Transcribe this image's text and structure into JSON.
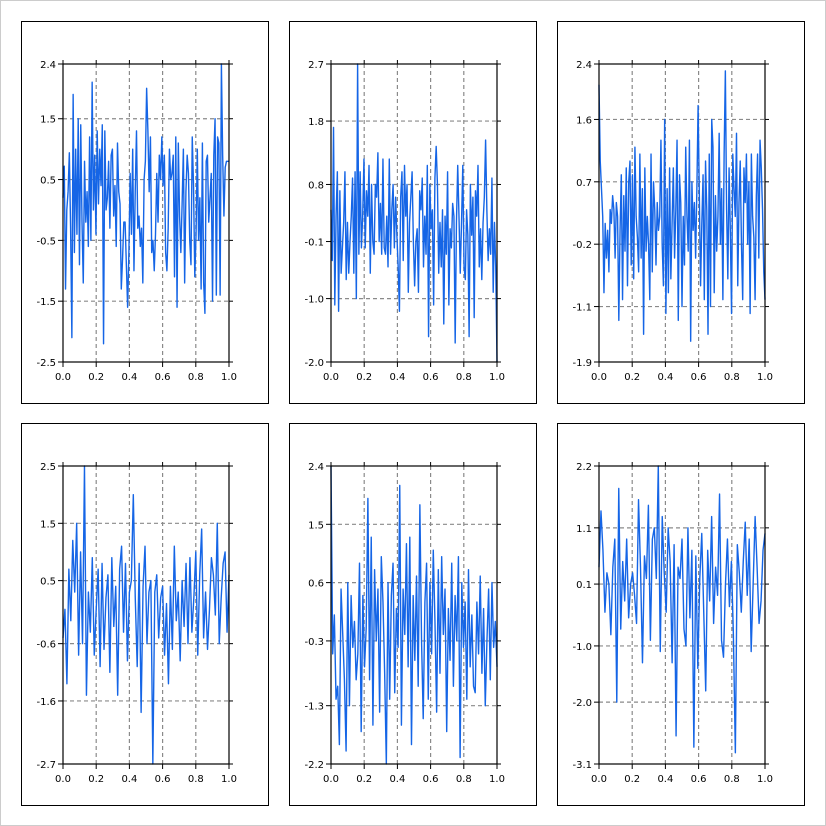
{
  "colors": {
    "line": "#1565e6",
    "grid": "#8a8a8a",
    "frame": "#000000",
    "background": "#ffffff"
  },
  "chart_data": [
    {
      "type": "line",
      "xlim": [
        0,
        1
      ],
      "ylim": [
        -2.5,
        2.4
      ],
      "xticks": [
        "0.0",
        "0.2",
        "0.4",
        "0.6",
        "0.8",
        "1.0"
      ],
      "yticks": [
        "-2.5",
        "-1.5",
        "-0.5",
        "0.5",
        "1.5",
        "2.4"
      ],
      "ytick_values": [
        -2.5,
        -1.5,
        -0.5,
        0.5,
        1.5,
        2.4
      ],
      "grid": true,
      "series": [
        {
          "values": [
            0.2,
            0.72,
            -1.3,
            0.0,
            0.3,
            0.94,
            -0.3,
            -2.1,
            1.9,
            -0.7,
            1.0,
            -0.4,
            1.5,
            -0.9,
            1.4,
            -0.2,
            -1.2,
            0.8,
            -0.2,
            0.3,
            -0.6,
            1.2,
            -0.5,
            2.1,
            0.0,
            0.9,
            -0.4,
            1.3,
            0.1,
            1.0,
            0.4,
            1.4,
            -2.2,
            1.3,
            0.0,
            0.2,
            0.8,
            -0.3,
            0.9,
            1.0,
            -0.1,
            0.4,
            -0.6,
            1.1,
            0.3,
            0.1,
            -1.3,
            -0.8,
            -0.2,
            -0.2,
            -0.9,
            -1.6,
            -0.7,
            0.6,
            -0.4,
            1.0,
            -1.0,
            0.3,
            1.3,
            -0.3,
            -0.1,
            -0.6,
            -0.3,
            -1.2,
            0.5,
            0.8,
            2.0,
            1.3,
            0.3,
            1.2,
            -0.7,
            -0.5,
            -1.0,
            -0.4,
            0.6,
            -0.2,
            0.9,
            0.5,
            1.2,
            0.4,
            0.9,
            -0.7,
            -1.0,
            -0.3,
            1.0,
            0.5,
            0.6,
            0.9,
            -1.1,
            1.2,
            -1.6,
            1.1,
            -0.1,
            -0.7,
            0.1,
            1.0,
            -1.2,
            0.3,
            0.9,
            0.6,
            -0.5,
            -0.9,
            1.2,
            0.4,
            -1.1,
            -0.4,
            1.0,
            -0.5,
            0.2,
            -1.3,
            1.1,
            -1.2,
            -1.7,
            0.8,
            0.9,
            -0.2,
            0.2,
            0.6,
            -1.5,
            0.9,
            1.5,
            -1.4,
            1.2,
            1.1,
            -1.4,
            2.4,
            0.9,
            -0.1,
            0.7,
            0.8,
            0.8,
            0.8
          ]
        }
      ]
    },
    {
      "type": "line",
      "xlim": [
        0,
        1
      ],
      "ylim": [
        -2.0,
        2.7
      ],
      "xticks": [
        "0.0",
        "0.2",
        "0.4",
        "0.6",
        "0.8",
        "1.0"
      ],
      "yticks": [
        "-2.0",
        "-1.0",
        "-0.1",
        "0.8",
        "1.8",
        "2.7"
      ],
      "ytick_values": [
        -2.0,
        -1.0,
        -0.1,
        0.8,
        1.8,
        2.7
      ],
      "grid": true,
      "series": [
        {
          "values": [
            0.4,
            -0.4,
            1.7,
            -1.1,
            0.3,
            1.0,
            -1.2,
            0.7,
            -0.6,
            -0.2,
            0.2,
            1.0,
            -0.7,
            0.2,
            -0.6,
            -0.1,
            0.3,
            0.9,
            -0.6,
            1.0,
            -1.0,
            2.7,
            -0.3,
            1.0,
            -0.2,
            0.3,
            1.2,
            -0.2,
            0.7,
            0.3,
            1.1,
            -0.6,
            0.8,
            -0.1,
            -0.3,
            0.8,
            0.6,
            1.3,
            -0.1,
            0.5,
            -0.3,
            1.2,
            -0.2,
            -0.3,
            0.3,
            -0.5,
            1.2,
            -0.3,
            0.4,
            0.8,
            -0.2,
            0.6,
            0.0,
            -0.5,
            -1.2,
            0.6,
            1.0,
            -0.4,
            1.1,
            0.3,
            0.8,
            -0.9,
            0.2,
            0.6,
            1.0,
            -0.1,
            -0.8,
            -0.1,
            0.1,
            -0.9,
            0.7,
            0.4,
            0.9,
            -0.5,
            0.3,
            -0.3,
            1.1,
            -1.6,
            0.8,
            0.1,
            0.4,
            -1.1,
            0.9,
            1.4,
            0.8,
            -0.6,
            0.2,
            -0.5,
            0.4,
            -1.4,
            0.3,
            -0.3,
            1.0,
            -1.1,
            0.1,
            -0.2,
            0.5,
            0.3,
            -1.7,
            0.2,
            1.1,
            0.3,
            -0.6,
            0.2,
            1.1,
            -0.5,
            -0.7,
            0.4,
            0.0,
            -1.6,
            0.8,
            0.0,
            0.6,
            -1.3,
            0.7,
            0.3,
            1.1,
            -0.5,
            0.1,
            -0.7,
            0.2,
            0.6,
            1.5,
            0.4,
            -0.4,
            0.1,
            -0.3,
            0.9,
            -0.9,
            0.2,
            -0.5,
            -2.0
          ]
        }
      ]
    },
    {
      "type": "line",
      "xlim": [
        0,
        1
      ],
      "ylim": [
        -1.9,
        2.4
      ],
      "xticks": [
        "0.0",
        "0.2",
        "0.4",
        "0.6",
        "0.8",
        "1.0"
      ],
      "yticks": [
        "-1.9",
        "-1.1",
        "-0.2",
        "0.7",
        "1.6",
        "2.4"
      ],
      "ytick_values": [
        -1.9,
        -1.1,
        -0.2,
        0.7,
        1.6,
        2.4
      ],
      "grid": true,
      "series": [
        {
          "values": [
            2.1,
            1.0,
            0.6,
            0.2,
            -0.9,
            0.1,
            -0.4,
            0.0,
            -0.6,
            0.3,
            0.1,
            0.5,
            0.3,
            -0.4,
            0.4,
            0.2,
            -1.3,
            0.0,
            0.8,
            -1.0,
            0.5,
            -0.3,
            0.9,
            -0.8,
            0.7,
            1.0,
            -0.5,
            0.8,
            -0.7,
            1.2,
            0.2,
            -0.1,
            -0.6,
            1.1,
            -0.4,
            0.6,
            -1.5,
            0.9,
            -0.3,
            0.2,
            -0.2,
            -1.0,
            1.1,
            -0.6,
            0.7,
            0.3,
            -0.5,
            0.4,
            0.0,
            0.2,
            1.3,
            -0.2,
            -0.8,
            1.6,
            -1.2,
            0.6,
            -0.9,
            0.9,
            -0.7,
            0.1,
            0.9,
            -0.4,
            0.3,
            1.3,
            -1.3,
            0.8,
            0.4,
            -1.1,
            0.2,
            -0.5,
            1.2,
            0.2,
            -0.3,
            1.3,
            -1.6,
            0.7,
            0.0,
            0.4,
            -0.4,
            0.6,
            1.8,
            0.5,
            -0.8,
            0.1,
            0.8,
            -1.0,
            1.0,
            0.3,
            -1.5,
            1.1,
            -1.1,
            1.6,
            1.2,
            -0.9,
            0.5,
            -0.3,
            0.2,
            1.4,
            -0.2,
            0.6,
            -1.0,
            1.1,
            2.3,
            0.3,
            -0.7,
            0.9,
            0.0,
            -1.2,
            1.1,
            0.6,
            0.2,
            1.4,
            -0.8,
            0.4,
            1.0,
            -0.2,
            -1.0,
            0.9,
            0.4,
            1.1,
            -0.2,
            0.7,
            -1.2,
            1.1,
            0.2,
            -0.1,
            -1.0,
            0.5,
            1.1,
            -0.4,
            1.3,
            0.9,
            0.3,
            -0.6,
            -1.0
          ]
        }
      ]
    },
    {
      "type": "line",
      "xlim": [
        0,
        1
      ],
      "ylim": [
        -2.7,
        2.5
      ],
      "xticks": [
        "0.0",
        "0.2",
        "0.4",
        "0.6",
        "0.8",
        "1.0"
      ],
      "yticks": [
        "-2.7",
        "-1.6",
        "-0.6",
        "0.5",
        "1.5",
        "2.5"
      ],
      "ytick_values": [
        -2.7,
        -1.6,
        -0.6,
        0.5,
        1.5,
        2.5
      ],
      "grid": true,
      "series": [
        {
          "values": [
            -0.5,
            0.0,
            -1.3,
            0.7,
            -0.2,
            1.2,
            0.3,
            1.5,
            -0.8,
            1.0,
            -0.6,
            2.5,
            -1.5,
            0.3,
            -0.4,
            0.9,
            -0.8,
            0.0,
            0.7,
            -1.0,
            0.8,
            -0.7,
            0.2,
            0.6,
            -1.1,
            0.9,
            -0.3,
            0.4,
            -1.5,
            0.7,
            1.1,
            -0.4,
            0.8,
            -0.9,
            0.3,
            0.5,
            2.0,
            0.2,
            -1.0,
            0.8,
            -1.8,
            0.4,
            1.1,
            -0.6,
            0.3,
            0.5,
            -2.7,
            0.3,
            0.6,
            -0.5,
            0.2,
            0.4,
            -0.8,
            0.1,
            -1.3,
            0.4,
            -0.7,
            1.1,
            -0.2,
            0.3,
            -0.9,
            0.5,
            -0.3,
            0.8,
            -0.6,
            0.9,
            -0.4,
            0.2,
            1.0,
            -0.8,
            0.6,
            1.4,
            -0.5,
            0.3,
            -0.7,
            0.0,
            0.9,
            0.6,
            -0.1,
            1.5,
            -0.6,
            0.2,
            0.8,
            1.0,
            -0.4,
            0.6
          ]
        }
      ]
    },
    {
      "type": "line",
      "xlim": [
        0,
        1
      ],
      "ylim": [
        -2.2,
        2.4
      ],
      "xticks": [
        "0.0",
        "0.2",
        "0.4",
        "0.6",
        "0.8",
        "1.0"
      ],
      "yticks": [
        "-2.2",
        "-1.3",
        "-0.3",
        "0.6",
        "1.5",
        "2.4"
      ],
      "ytick_values": [
        -2.2,
        -1.3,
        -0.3,
        0.6,
        1.5,
        2.4
      ],
      "grid": true,
      "series": [
        {
          "values": [
            2.4,
            -0.5,
            0.1,
            -1.2,
            -1.0,
            -1.9,
            0.5,
            -0.2,
            -0.9,
            -2.0,
            0.6,
            -1.3,
            0.4,
            -0.4,
            0.0,
            -0.9,
            -0.5,
            0.9,
            -1.7,
            0.4,
            -0.7,
            -0.1,
            1.9,
            -0.9,
            1.3,
            -1.6,
            0.8,
            -0.3,
            0.5,
            -1.4,
            1.0,
            0.3,
            -0.8,
            -2.2,
            0.6,
            -1.2,
            0.4,
            0.9,
            -1.1,
            0.2,
            -0.4,
            2.1,
            -1.6,
            0.5,
            -0.2,
            1.2,
            -0.7,
            1.3,
            -1.9,
            0.4,
            -0.6,
            0.7,
            -1.0,
            1.8,
            -0.3,
            -1.5,
            0.3,
            0.9,
            -1.2,
            0.6,
            -0.5,
            1.1,
            0.0,
            -1.4,
            0.8,
            -0.8,
            1.0,
            -0.2,
            0.5,
            -1.7,
            0.2,
            -0.6,
            0.9,
            -1.0,
            0.4,
            -0.3,
            1.0,
            -2.1,
            0.6,
            -0.4,
            0.3,
            -1.2,
            0.8,
            -0.7,
            0.1,
            -1.0,
            -1.1,
            0.3,
            -0.5,
            0.7,
            -0.8,
            0.2,
            -1.3,
            -0.3,
            0.5,
            -0.9,
            0.6,
            -0.4,
            0.0,
            -0.7
          ]
        }
      ]
    },
    {
      "type": "line",
      "xlim": [
        0,
        1
      ],
      "ylim": [
        -3.1,
        2.2
      ],
      "xticks": [
        "0.0",
        "0.2",
        "0.4",
        "0.6",
        "0.8",
        "1.0"
      ],
      "yticks": [
        "-3.1",
        "-2.0",
        "-1.0",
        "0.1",
        "1.1",
        "2.2"
      ],
      "ytick_values": [
        -3.1,
        -2.0,
        -1.0,
        0.1,
        1.1,
        2.2
      ],
      "grid": true,
      "series": [
        {
          "values": [
            0.4,
            1.4,
            0.7,
            -0.4,
            0.3,
            0.1,
            -0.8,
            0.4,
            0.9,
            -2.0,
            1.8,
            -0.7,
            0.5,
            -0.2,
            0.9,
            -0.5,
            0.1,
            0.3,
            -0.1,
            -0.6,
            1.6,
            0.4,
            -1.3,
            0.6,
            0.2,
            1.5,
            -0.9,
            0.9,
            1.1,
            0.2,
            2.2,
            -1.1,
            1.3,
            0.3,
            -0.4,
            1.1,
            0.5,
            -1.3,
            0.8,
            -2.6,
            0.4,
            0.2,
            0.9,
            -0.7,
            -1.0,
            1.1,
            -0.5,
            0.7,
            -2.8,
            0.6,
            -1.4,
            0.2,
            1.0,
            -0.4,
            -1.8,
            0.7,
            -0.2,
            1.3,
            -0.6,
            0.4,
            -0.1,
            1.7,
            -0.9,
            -1.2,
            0.1,
            0.9,
            -0.3,
            0.5,
            -0.8,
            -2.9,
            0.8,
            0.3,
            -0.4,
            0.5,
            1.2,
            -0.1,
            0.9,
            -1.1,
            0.1,
            1.3,
            0.4,
            -0.6,
            -0.2,
            0.7,
            1.0
          ]
        }
      ]
    }
  ]
}
